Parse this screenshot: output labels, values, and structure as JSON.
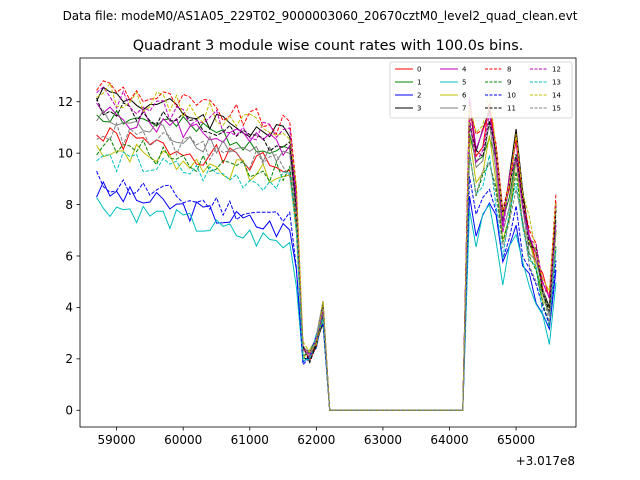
{
  "suptitle": "Data file: modeM0/AS1A05_229T02_9000003060_20670cztM0_level2_quad_clean.evt",
  "chart_data": {
    "type": "line",
    "title": "Quadrant 3 module wise count rates with 100.0s bins.",
    "xlabel": "",
    "ylabel": "",
    "x_offset_label": "+3.017e8",
    "xlim": [
      58450,
      65900
    ],
    "ylim": [
      -0.65,
      13.7
    ],
    "xticks": [
      59000,
      60000,
      61000,
      62000,
      63000,
      64000,
      65000
    ],
    "xtick_labels": [
      "59000",
      "60000",
      "61000",
      "62000",
      "63000",
      "64000",
      "65000"
    ],
    "yticks": [
      0,
      2,
      4,
      6,
      8,
      10,
      12
    ],
    "ytick_labels": [
      "0",
      "2",
      "4",
      "6",
      "8",
      "10",
      "12"
    ],
    "grid": false,
    "legend_position": "top-right",
    "legend_columns": 4,
    "x": [
      58700,
      58800,
      58900,
      59000,
      59100,
      59200,
      59300,
      59400,
      59500,
      59600,
      59700,
      59800,
      59900,
      60000,
      60100,
      60200,
      60300,
      60400,
      60500,
      60600,
      60700,
      60800,
      60900,
      61000,
      61100,
      61200,
      61300,
      61400,
      61500,
      61600,
      61700,
      61800,
      61900,
      62000,
      62100,
      62200,
      62300,
      62400,
      62500,
      62600,
      62700,
      62800,
      62900,
      63000,
      63100,
      63200,
      63300,
      63400,
      63500,
      63600,
      63700,
      63800,
      63900,
      64000,
      64100,
      64200,
      64300,
      64400,
      64500,
      64600,
      64700,
      64800,
      64900,
      65000,
      65100,
      65200,
      65300,
      65400,
      65500,
      65600
    ],
    "series": [
      {
        "name": "0",
        "color": "#ff0000",
        "dash": false,
        "level": 9.4,
        "slope": 0.9,
        "seed": 1,
        "burst": 1.0
      },
      {
        "name": "1",
        "color": "#008000",
        "dash": false,
        "level": 10.2,
        "slope": 1.0,
        "seed": 2,
        "burst": 0.95
      },
      {
        "name": "2",
        "color": "#0000ff",
        "dash": false,
        "level": 7.0,
        "slope": 1.1,
        "seed": 3,
        "burst": 0.72
      },
      {
        "name": "3",
        "color": "#000000",
        "dash": false,
        "level": 10.6,
        "slope": 1.3,
        "seed": 4,
        "burst": 1.02
      },
      {
        "name": "4",
        "color": "#bf00bf",
        "dash": false,
        "level": 10.2,
        "slope": 1.0,
        "seed": 5,
        "burst": 1.0
      },
      {
        "name": "5",
        "color": "#00bfbf",
        "dash": false,
        "level": 6.4,
        "slope": 1.2,
        "seed": 6,
        "burst": 0.68
      },
      {
        "name": "6",
        "color": "#bfbf00",
        "dash": false,
        "level": 9.0,
        "slope": 0.9,
        "seed": 7,
        "burst": 0.9
      },
      {
        "name": "7",
        "color": "#808080",
        "dash": false,
        "level": 9.8,
        "slope": 1.1,
        "seed": 8,
        "burst": 0.93
      },
      {
        "name": "8",
        "color": "#ff0000",
        "dash": true,
        "level": 11.0,
        "slope": 1.2,
        "seed": 9,
        "burst": 1.03
      },
      {
        "name": "9",
        "color": "#008000",
        "dash": true,
        "level": 9.2,
        "slope": 0.8,
        "seed": 10,
        "burst": 0.85
      },
      {
        "name": "10",
        "color": "#0000ff",
        "dash": true,
        "level": 7.4,
        "slope": 1.1,
        "seed": 11,
        "burst": 0.75
      },
      {
        "name": "11",
        "color": "#000000",
        "dash": true,
        "level": 10.1,
        "slope": 1.3,
        "seed": 12,
        "burst": 0.97
      },
      {
        "name": "12",
        "color": "#bf00bf",
        "dash": true,
        "level": 10.6,
        "slope": 1.2,
        "seed": 13,
        "burst": 0.98
      },
      {
        "name": "13",
        "color": "#00bfbf",
        "dash": true,
        "level": 8.8,
        "slope": 0.7,
        "seed": 14,
        "burst": 0.83
      },
      {
        "name": "14",
        "color": "#bfbf00",
        "dash": true,
        "level": 11.0,
        "slope": 1.0,
        "seed": 15,
        "burst": 1.04
      },
      {
        "name": "15",
        "color": "#808080",
        "dash": true,
        "level": 9.5,
        "slope": 1.0,
        "seed": 16,
        "burst": 0.86
      }
    ]
  }
}
